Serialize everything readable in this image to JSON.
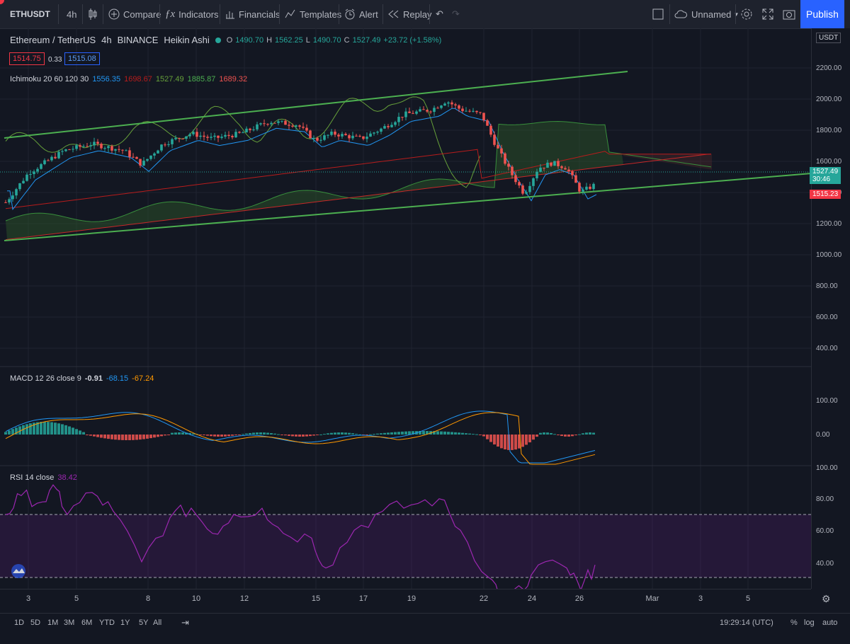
{
  "toolbar": {
    "symbol": "ETHUSDT",
    "interval": "4h",
    "compare": "Compare",
    "indicators": "Indicators",
    "financials": "Financials",
    "templates": "Templates",
    "alert": "Alert",
    "replay": "Replay",
    "layout_name": "Unnamed",
    "publish": "Publish"
  },
  "legend": {
    "title": "Ethereum / TetherUS",
    "interval": "4h",
    "exchange": "BINANCE",
    "chart_style": "Heikin Ashi",
    "o_label": "O",
    "o": "1490.70",
    "h_label": "H",
    "h": "1562.25",
    "l_label": "L",
    "l": "1490.70",
    "c_label": "C",
    "c": "1527.49",
    "change": "+23.72 (+1.58%)",
    "sell_price": "1514.75",
    "spread": "0.33",
    "buy_price": "1515.08"
  },
  "ichimoku": {
    "label": "Ichimoku 20 60 120 30",
    "v1": "1556.35",
    "v2": "1698.67",
    "v3": "1527.49",
    "v4": "1885.87",
    "v5": "1689.32"
  },
  "macd": {
    "label": "MACD 12 26 close 9",
    "v1": "-0.91",
    "v2": "-68.15",
    "v3": "-67.24"
  },
  "rsi": {
    "label": "RSI 14 close",
    "v1": "38.42"
  },
  "axis": {
    "currency": "USDT",
    "price_ticks": [
      "2200.00",
      "2000.00",
      "1800.00",
      "1600.00",
      "1400.00",
      "1200.00",
      "1000.00",
      "800.00",
      "600.00",
      "400.00"
    ],
    "macd_ticks": [
      "100.00",
      "0.00",
      "100.00"
    ],
    "rsi_ticks": [
      "80.00",
      "60.00",
      "40.00"
    ],
    "last_price": "1527.49",
    "countdown": "30:46",
    "ask_tag": "1515.23"
  },
  "time_axis": [
    "3",
    "5",
    "8",
    "10",
    "12",
    "15",
    "17",
    "19",
    "22",
    "24",
    "26",
    "Mar",
    "3",
    "5"
  ],
  "bottom": {
    "ranges": [
      "1D",
      "5D",
      "1M",
      "3M",
      "6M",
      "YTD",
      "1Y",
      "5Y",
      "All"
    ],
    "clock": "19:29:14 (UTC)",
    "pct": "%",
    "log": "log",
    "auto": "auto"
  },
  "colors": {
    "up": "#26a69a",
    "down": "#ef5350",
    "channel": "#4caf50",
    "tenkan": "#2196f3",
    "kijun": "#b71c1c",
    "cloud_bull": "#1b3a1f",
    "rsi": "#9c27b0",
    "macd_signal": "#ff9800"
  }
}
